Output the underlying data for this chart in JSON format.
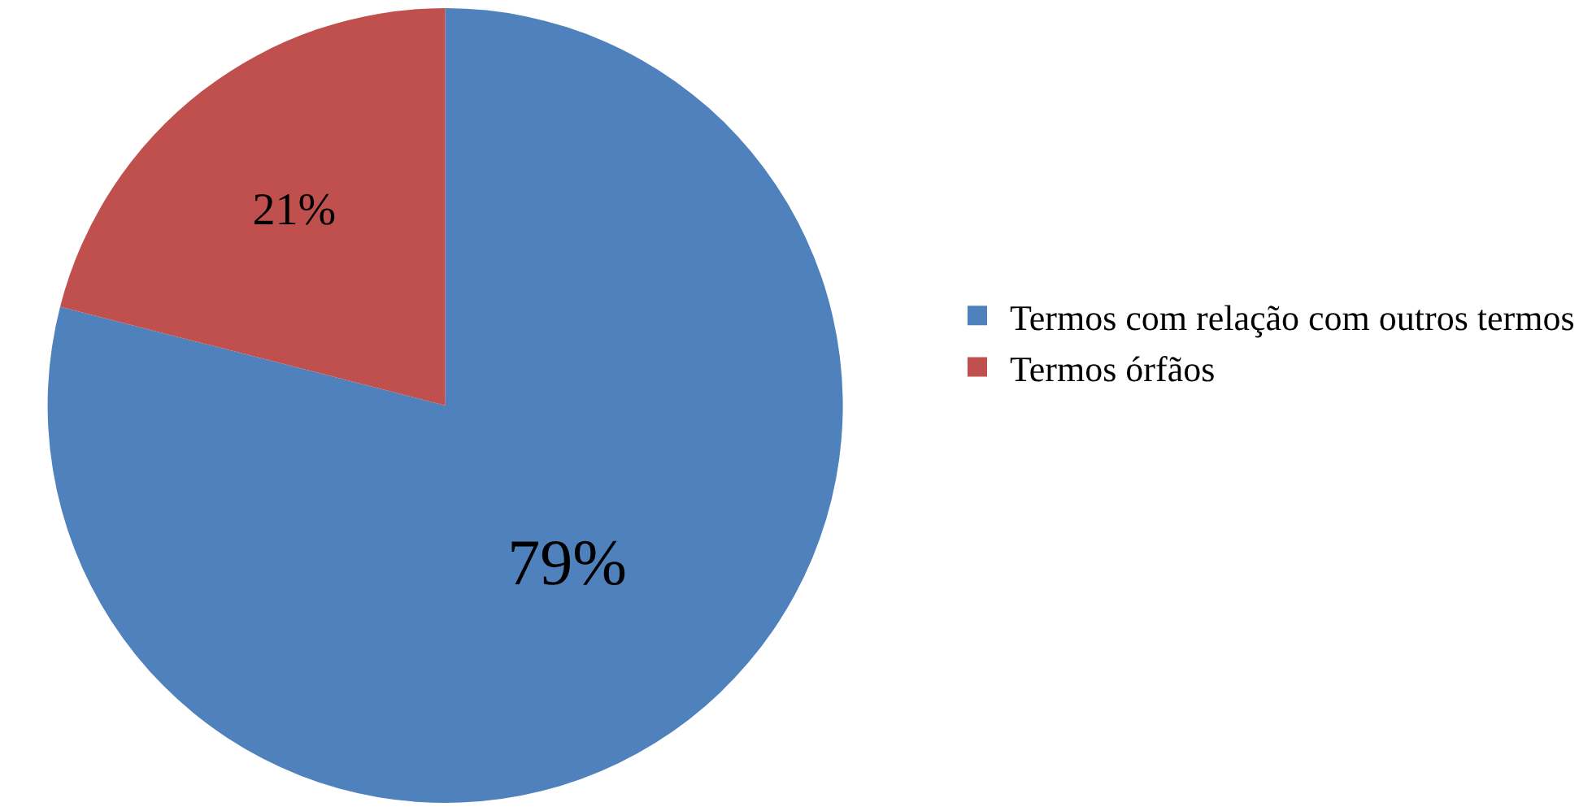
{
  "chart_data": {
    "type": "pie",
    "categories": [
      "Termos com relação com outros termos",
      "Termos órfãos"
    ],
    "values": [
      79,
      21
    ],
    "colors": [
      "#4f81bd",
      "#c0504d"
    ],
    "value_labels": [
      "79%",
      "21%"
    ],
    "legend": "right"
  }
}
